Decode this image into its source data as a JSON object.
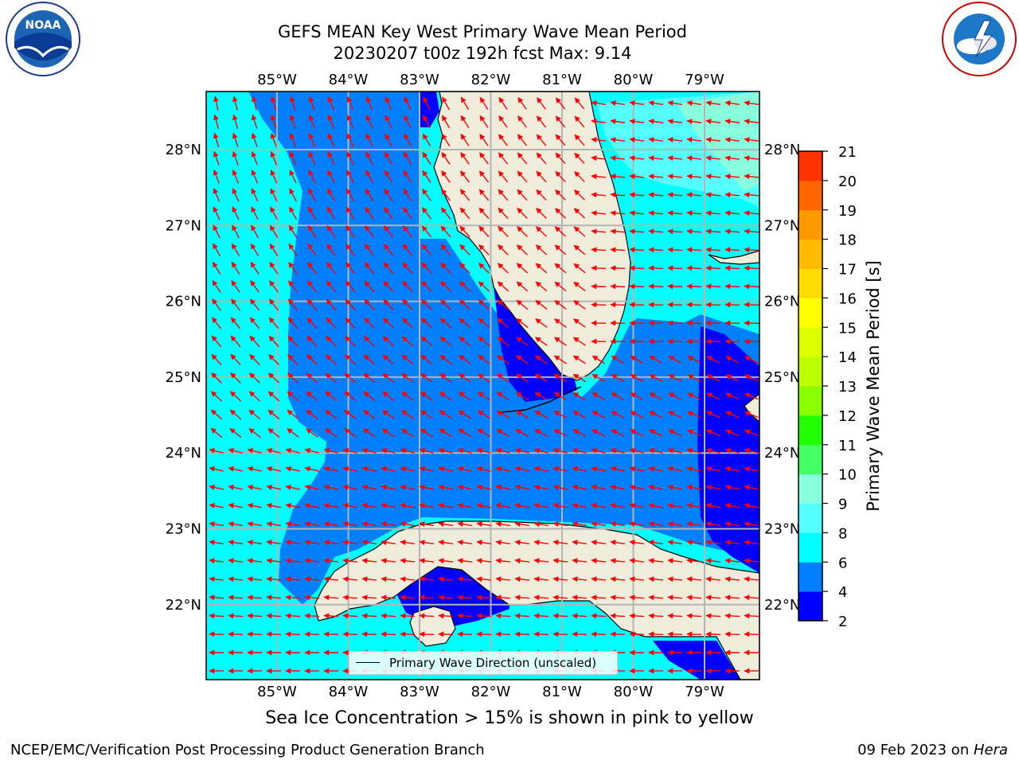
{
  "title": {
    "line1": "GEFS MEAN Key West Primary Wave Mean Period",
    "line2": "20230207 t00z 192h fcst   Max: 9.14"
  },
  "logos": {
    "left": "NOAA",
    "right": "NATIONAL WEATHER SERVICE"
  },
  "map": {
    "lon_labels": [
      "85°W",
      "84°W",
      "83°W",
      "82°W",
      "81°W",
      "80°W",
      "79°W"
    ],
    "lat_labels": [
      "28°N",
      "27°N",
      "26°N",
      "25°N",
      "24°N",
      "23°N",
      "22°N"
    ],
    "legend_label": "Primary Wave Direction (unscaled)",
    "colors": {
      "land": "#efecdc",
      "arrow": "#ff0000",
      "grid": "#b4b4b4",
      "band_2_4": "#0000ff",
      "band_4_6": "#0080ff",
      "band_6_8": "#00ffff",
      "band_8_9": "#55ffff",
      "band_9_10": "#88ffdd"
    }
  },
  "colorbar": {
    "label": "Primary Wave Mean Period [s]",
    "ticks": [
      "2",
      "4",
      "6",
      "8",
      "9",
      "10",
      "11",
      "12",
      "13",
      "14",
      "15",
      "16",
      "17",
      "18",
      "19",
      "20",
      "21"
    ],
    "colors": [
      "#0000ff",
      "#0080ff",
      "#00ffff",
      "#55ffff",
      "#88ffdd",
      "#44ff66",
      "#22ff00",
      "#88ff00",
      "#bbff00",
      "#ddff00",
      "#ffff00",
      "#ffdd00",
      "#ffbb00",
      "#ff9900",
      "#ff6600",
      "#ff3300",
      "#ff0000"
    ]
  },
  "caption": "Sea Ice Concentration > 15% is shown in pink to yellow",
  "footer": {
    "left": "NCEP/EMC/Verification Post Processing Product Generation Branch",
    "right_date": "09 Feb 2023 on ",
    "right_host": "Hera"
  }
}
